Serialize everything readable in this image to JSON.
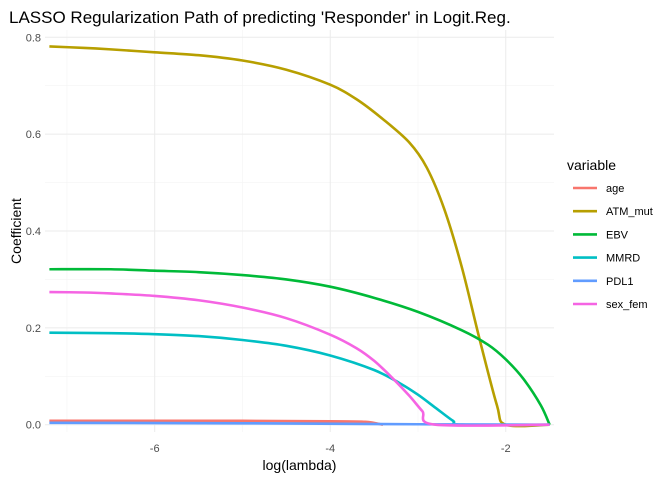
{
  "chart_data": {
    "type": "line",
    "title": "LASSO Regularization Path of predicting 'Responder' in Logit.Reg.",
    "xlabel": "log(lambda)",
    "ylabel": "Coefficient",
    "xlim": [
      -7.25,
      -1.45
    ],
    "ylim": [
      -0.015,
      0.815
    ],
    "x_ticks": [
      -6,
      -4,
      -2
    ],
    "x_tick_labels": [
      "-6",
      "-4",
      "-2"
    ],
    "y_ticks": [
      0.0,
      0.2,
      0.4,
      0.6,
      0.8
    ],
    "y_tick_labels": [
      "0.0",
      "0.2",
      "0.4",
      "0.6",
      "0.8"
    ],
    "grid": true,
    "legend": {
      "title": "variable",
      "placement": "right"
    },
    "series": [
      {
        "name": "age",
        "color": "#F8766D",
        "x": [
          -7.2,
          -5.0,
          -4.0,
          -3.6,
          -3.4
        ],
        "y": [
          0.008,
          0.008,
          0.007,
          0.006,
          0.0
        ]
      },
      {
        "name": "ATM_mut",
        "color": "#B79F00",
        "x": [
          -7.2,
          -6.8,
          -6.5,
          -6.0,
          -5.5,
          -5.0,
          -4.5,
          -4.0,
          -3.7,
          -3.4,
          -3.1,
          -2.9,
          -2.7,
          -2.5,
          -2.3,
          -2.1,
          -2.0,
          -1.5
        ],
        "y": [
          0.781,
          0.778,
          0.775,
          0.769,
          0.763,
          0.752,
          0.733,
          0.702,
          0.672,
          0.631,
          0.583,
          0.531,
          0.445,
          0.325,
          0.178,
          0.04,
          0.0,
          0.0
        ]
      },
      {
        "name": "EBV",
        "color": "#00BA38",
        "x": [
          -7.2,
          -6.5,
          -6.0,
          -5.5,
          -5.0,
          -4.5,
          -4.0,
          -3.5,
          -3.0,
          -2.5,
          -2.2,
          -2.0,
          -1.8,
          -1.6,
          -1.5
        ],
        "y": [
          0.321,
          0.321,
          0.318,
          0.315,
          0.309,
          0.3,
          0.285,
          0.262,
          0.233,
          0.195,
          0.165,
          0.135,
          0.095,
          0.04,
          0.0
        ]
      },
      {
        "name": "MMRD",
        "color": "#00BFC4",
        "x": [
          -7.2,
          -6.5,
          -6.0,
          -5.5,
          -5.0,
          -4.5,
          -4.0,
          -3.5,
          -3.2,
          -3.0,
          -2.8,
          -2.6,
          -2.5,
          -1.5
        ],
        "y": [
          0.19,
          0.189,
          0.187,
          0.183,
          0.175,
          0.163,
          0.143,
          0.113,
          0.085,
          0.062,
          0.035,
          0.008,
          0.0,
          0.0
        ]
      },
      {
        "name": "PDL1",
        "color": "#619CFF",
        "x": [
          -7.2,
          -5.0,
          -3.0,
          -1.5
        ],
        "y": [
          0.004,
          0.003,
          0.001,
          0.0
        ]
      },
      {
        "name": "sex_fem",
        "color": "#F564E3",
        "x": [
          -7.2,
          -6.8,
          -6.5,
          -6.0,
          -5.5,
          -5.0,
          -4.5,
          -4.0,
          -3.7,
          -3.5,
          -3.3,
          -3.1,
          -2.95,
          -2.8,
          -1.5
        ],
        "y": [
          0.274,
          0.273,
          0.271,
          0.266,
          0.257,
          0.242,
          0.22,
          0.186,
          0.158,
          0.132,
          0.098,
          0.06,
          0.028,
          0.0,
          0.0
        ]
      }
    ]
  }
}
